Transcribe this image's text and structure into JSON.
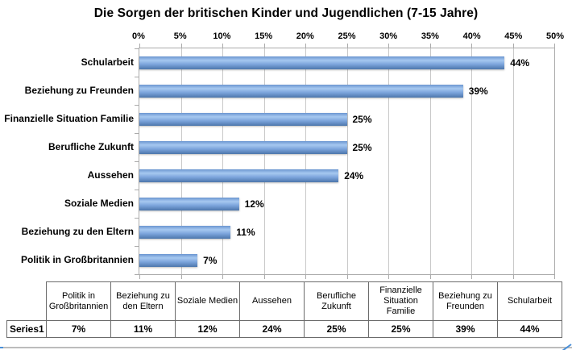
{
  "title": "Die Sorgen der britischen Kinder und Jugendlichen (7-15 Jahre)",
  "chart_data": {
    "type": "bar",
    "orientation": "horizontal",
    "title": "Die Sorgen der britischen Kinder und Jugendlichen (7-15 Jahre)",
    "categories": [
      "Schularbeit",
      "Beziehung zu Freunden",
      "Finanzielle Situation Familie",
      "Berufliche Zukunft",
      "Aussehen",
      "Soziale Medien",
      "Beziehung zu den Eltern",
      "Politik in Großbritannien"
    ],
    "values": [
      44,
      39,
      25,
      25,
      24,
      12,
      11,
      7
    ],
    "data_labels": [
      "44%",
      "39%",
      "25%",
      "25%",
      "24%",
      "12%",
      "11%",
      "7%"
    ],
    "x_tick_labels": [
      "0%",
      "5%",
      "10%",
      "15%",
      "20%",
      "25%",
      "30%",
      "35%",
      "40%",
      "45%",
      "50%"
    ],
    "xlim": [
      0,
      50
    ],
    "grid": true,
    "axis_position": "top",
    "series_name": "Series1",
    "bar_color": "#6fa0dc",
    "gridline_color": "#c9c9c9"
  },
  "table": {
    "row_label": "Series1",
    "columns": [
      "Politik in Großbritannien",
      "Beziehung zu den Eltern",
      "Soziale Medien",
      "Aussehen",
      "Berufliche Zukunft",
      "Finanzielle Situation Familie",
      "Beziehung zu Freunden",
      "Schularbeit"
    ],
    "values": [
      "7%",
      "11%",
      "12%",
      "24%",
      "25%",
      "25%",
      "39%",
      "44%"
    ]
  }
}
